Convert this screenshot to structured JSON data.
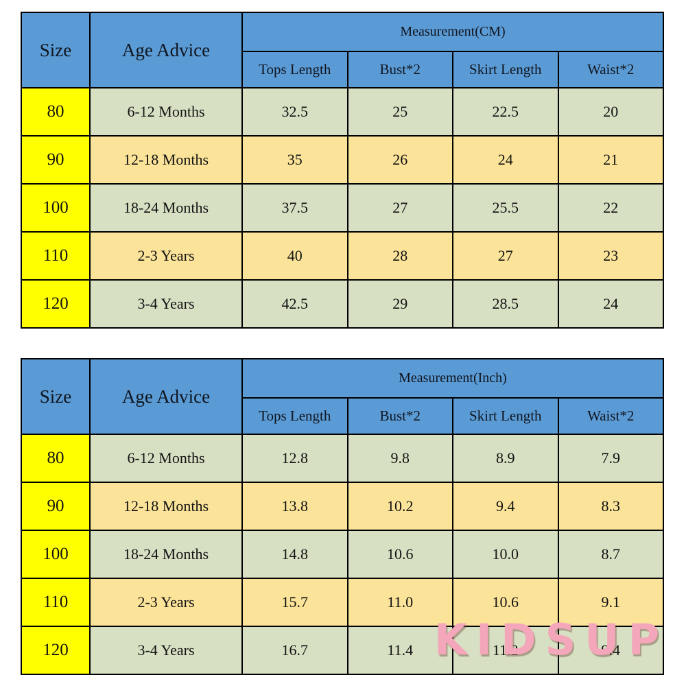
{
  "colors": {
    "header_blue": "#5b9bd5",
    "size_column_yellow": "#ffff00",
    "row_green": "#d7e0c3",
    "row_tan": "#fbe399",
    "border_black": "#000000",
    "watermark_pink": "#f4a6ba"
  },
  "watermark": {
    "text": "KIDSUP"
  },
  "chart_data": [
    {
      "type": "table",
      "title": "Measurement(CM)",
      "fixed_columns": [
        "Size",
        "Age Advice"
      ],
      "measure_columns": [
        "Tops Length",
        "Bust*2",
        "Skirt Length",
        "Waist*2"
      ],
      "rows": [
        [
          "80",
          "6-12 Months",
          "32.5",
          "25",
          "22.5",
          "20"
        ],
        [
          "90",
          "12-18 Months",
          "35",
          "26",
          "24",
          "21"
        ],
        [
          "100",
          "18-24 Months",
          "37.5",
          "27",
          "25.5",
          "22"
        ],
        [
          "110",
          "2-3 Years",
          "40",
          "28",
          "27",
          "23"
        ],
        [
          "120",
          "3-4 Years",
          "42.5",
          "29",
          "28.5",
          "24"
        ]
      ]
    },
    {
      "type": "table",
      "title": "Measurement(Inch)",
      "fixed_columns": [
        "Size",
        "Age Advice"
      ],
      "measure_columns": [
        "Tops Length",
        "Bust*2",
        "Skirt Length",
        "Waist*2"
      ],
      "rows": [
        [
          "80",
          "6-12 Months",
          "12.8",
          "9.8",
          "8.9",
          "7.9"
        ],
        [
          "90",
          "12-18 Months",
          "13.8",
          "10.2",
          "9.4",
          "8.3"
        ],
        [
          "100",
          "18-24 Months",
          "14.8",
          "10.6",
          "10.0",
          "8.7"
        ],
        [
          "110",
          "2-3 Years",
          "15.7",
          "11.0",
          "10.6",
          "9.1"
        ],
        [
          "120",
          "3-4 Years",
          "16.7",
          "11.4",
          "11.2",
          "9.4"
        ]
      ]
    }
  ]
}
